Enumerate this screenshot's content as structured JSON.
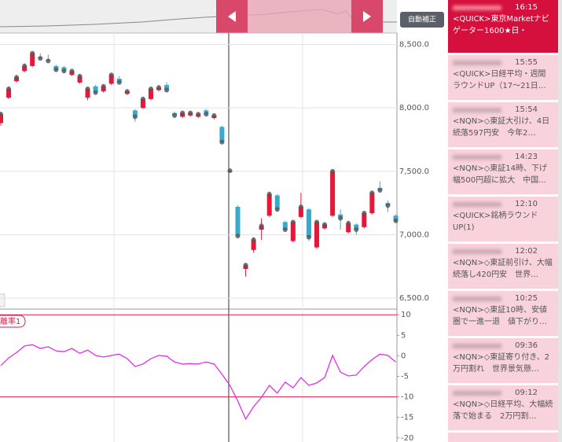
{
  "chart_data": [
    {
      "type": "candlestick",
      "open": [
        7880,
        8080,
        8210,
        8290,
        8330,
        8400,
        8380,
        8330,
        8320,
        8260,
        8200,
        8080,
        8170,
        8130,
        8190,
        8230,
        8110,
        7980,
        8000,
        8070,
        8140,
        8180,
        7960,
        7930,
        7940,
        7930,
        7980,
        7920,
        7850,
        7495,
        7220,
        6730,
        6880,
        7040,
        7150,
        7310,
        7100,
        6950,
        7140,
        7200,
        6900,
        7050,
        7150,
        7160,
        7020,
        7080,
        7060,
        7170,
        7370,
        7250,
        7150
      ],
      "high": [
        7970,
        8170,
        8260,
        8350,
        8440,
        8430,
        8420,
        8340,
        8330,
        8300,
        8260,
        8160,
        8180,
        8180,
        8270,
        8250,
        8140,
        7990,
        8080,
        8160,
        8180,
        8200,
        7970,
        7970,
        7970,
        7960,
        7990,
        7950,
        7860,
        7510,
        7230,
        6770,
        6980,
        7130,
        7340,
        7320,
        7110,
        7110,
        7330,
        7210,
        7110,
        7090,
        7510,
        7200,
        7110,
        7090,
        7180,
        7340,
        7420,
        7270,
        7160
      ],
      "low": [
        7860,
        8070,
        8200,
        8280,
        8320,
        8380,
        8360,
        8290,
        8280,
        8250,
        8190,
        8060,
        8110,
        8120,
        8180,
        8190,
        8100,
        7890,
        7990,
        8060,
        8130,
        8130,
        7920,
        7920,
        7930,
        7920,
        7940,
        7910,
        7720,
        7490,
        6980,
        6670,
        6860,
        6960,
        7140,
        7180,
        7030,
        6940,
        7130,
        6950,
        6890,
        7040,
        7140,
        7040,
        7010,
        7000,
        7050,
        7160,
        7340,
        7180,
        7100
      ],
      "close": [
        7950,
        8150,
        8240,
        8330,
        8430,
        8390,
        8370,
        8300,
        8290,
        8290,
        8250,
        8150,
        8120,
        8170,
        8260,
        8200,
        8130,
        7930,
        8070,
        8150,
        8160,
        8140,
        7940,
        7960,
        7960,
        7950,
        7950,
        7940,
        7730,
        7505,
        6990,
        6760,
        6960,
        7070,
        7320,
        7200,
        7040,
        7100,
        7220,
        6980,
        7100,
        7080,
        7500,
        7130,
        7090,
        7040,
        7170,
        7330,
        7350,
        7230,
        7110
      ],
      "up_color": "#e8173a",
      "down_color": "#3aa9cc",
      "ylim": [
        6420,
        8590
      ],
      "yticks": [
        {
          "value": 6500,
          "label": "6,500.0"
        },
        {
          "value": 7000,
          "label": "7,000.0"
        },
        {
          "value": 7500,
          "label": "7,500.0"
        },
        {
          "value": 8000,
          "label": "8,000.0"
        },
        {
          "value": 8500,
          "label": "8,500.0"
        }
      ],
      "grid": true
    },
    {
      "type": "line",
      "series": [
        {
          "name": "離率1",
          "color": "#e030e8",
          "values": [
            -2.4,
            -0.5,
            0.8,
            2.4,
            2.7,
            1.8,
            2.2,
            1.2,
            1.0,
            1.8,
            0.6,
            1.4,
            0.1,
            -0.3,
            0.1,
            0.4,
            -0.7,
            -2.6,
            -2.0,
            -0.7,
            0.1,
            -0.1,
            -1.5,
            -2.0,
            -1.9,
            -2.0,
            -1.5,
            -2.0,
            -4.5,
            -7.2,
            -11.0,
            -15.4,
            -12.4,
            -10.1,
            -7.2,
            -9.1,
            -6.4,
            -7.8,
            -5.3,
            -7.2,
            -6.6,
            -5.3,
            0.1,
            -4.0,
            -4.9,
            -4.7,
            -2.6,
            -0.9,
            0.4,
            0.1,
            -1.5
          ]
        }
      ],
      "ylim": [
        -21,
        11
      ],
      "yticks": [
        -20,
        -15,
        -10,
        -5,
        0,
        5,
        10
      ],
      "reference_lines": [
        10,
        -10
      ],
      "reference_color": "#d81f4a"
    }
  ],
  "button": "自動補正",
  "news": [
    {
      "time": "16:15",
      "headline": "<QUICK>東京Marketナビゲーター1600★日・"
    },
    {
      "time": "15:55",
      "headline": "<QUICK>日経平均・週間ラウンドUP（17～21日…"
    },
    {
      "time": "15:54",
      "headline": "<NQN>◇東証大引け、4日続落597円安　今年2…"
    },
    {
      "time": "14:23",
      "headline": "<NQN>◇東証14時、下げ幅500円超に拡大　中国…"
    },
    {
      "time": "12:10",
      "headline": "<QUICK>銘柄ラウンドUP(1)"
    },
    {
      "time": "12:02",
      "headline": "<NQN>◇東証前引け、大幅続落し420円安　世界…"
    },
    {
      "time": "10:25",
      "headline": "<NQN>◇東証10時、安値圏で一進一退　値下がり…"
    },
    {
      "time": "09:36",
      "headline": "<NQN>◇東証寄り付き、2万円割れ　世界景気懸…"
    },
    {
      "time": "09:12",
      "headline": "<NQN>◇日経平均、大幅続落で始まる　2万円割…"
    }
  ]
}
